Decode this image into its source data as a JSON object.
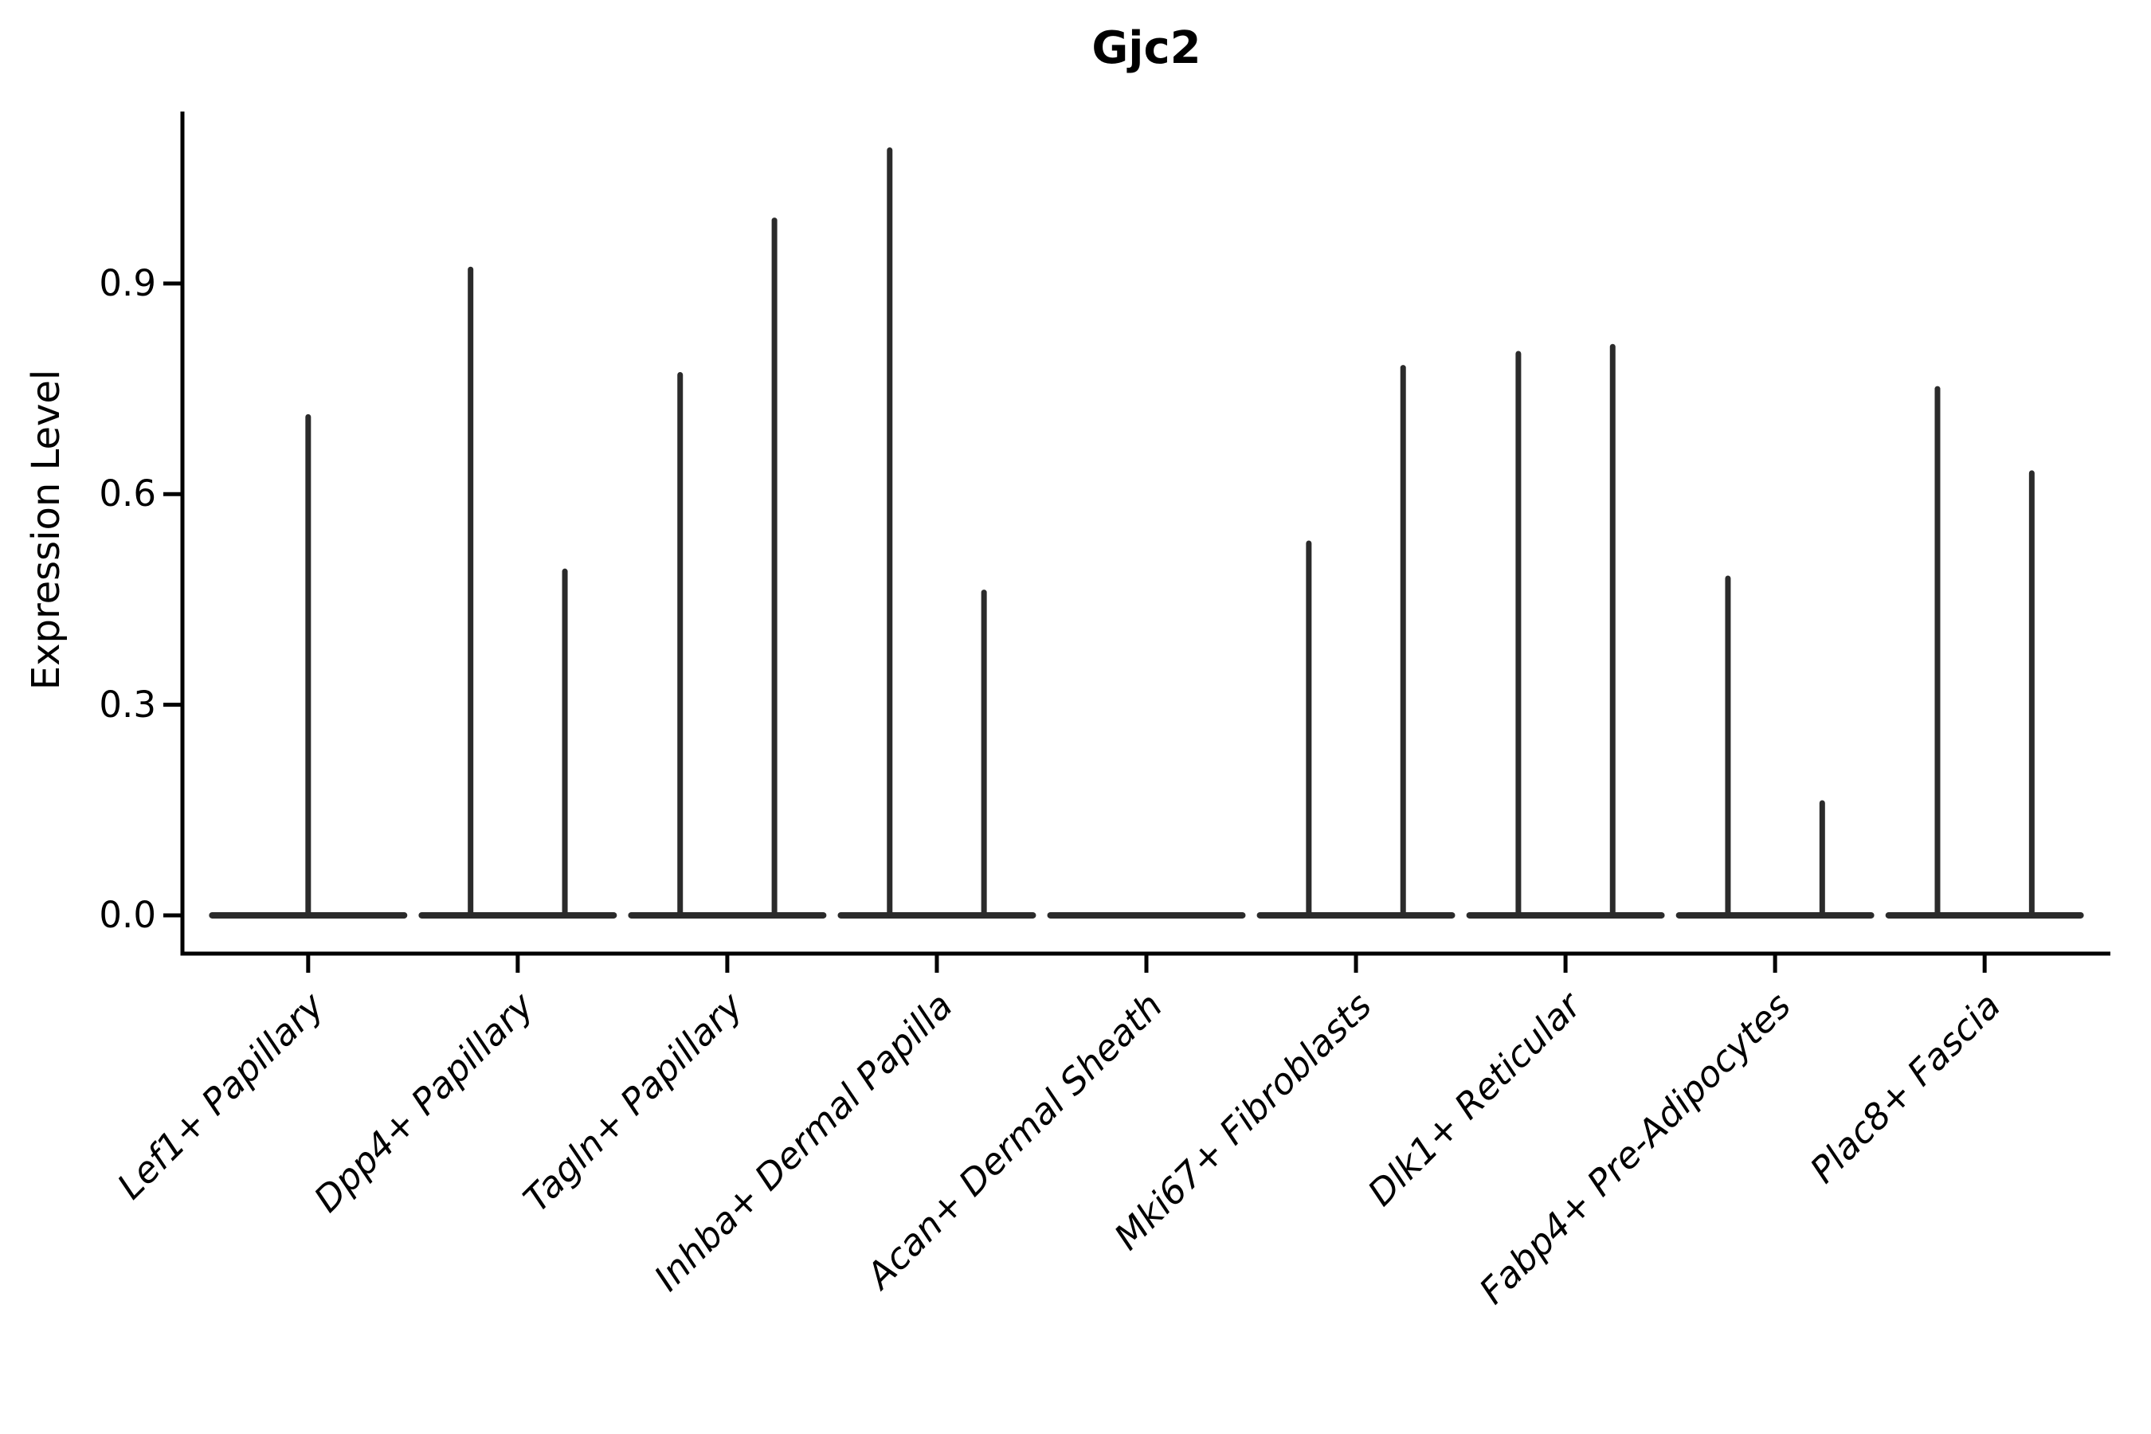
{
  "chart_data": {
    "type": "violin",
    "title": "Gjc2",
    "xlabel": "",
    "ylabel": "Expression Level",
    "yticks": [
      0.0,
      0.3,
      0.6,
      0.9
    ],
    "ylim": [
      -0.0545,
      1.145
    ],
    "grid": false,
    "legend": "none",
    "style_note": "Seurat-style stacked violin: each category shows near-zero-width violins (most cells at 0) rendered as a flat baseline at 0 with thin vertical density spikes; two dodged violin groups per category, single full-width violin when only one group present",
    "line_color": "#2b2b2b",
    "spine_color": "#000000",
    "background_color": "#ffffff",
    "categories": [
      {
        "label": "Lef1+ Papillary",
        "violins": [
          {
            "pos": "center",
            "max": 0.71
          }
        ]
      },
      {
        "label": "Dpp4+ Papillary",
        "violins": [
          {
            "pos": "left",
            "max": 0.92
          },
          {
            "pos": "right",
            "max": 0.49
          }
        ]
      },
      {
        "label": "Tagln+ Papillary",
        "violins": [
          {
            "pos": "left",
            "max": 0.77
          },
          {
            "pos": "right",
            "max": 0.99
          }
        ]
      },
      {
        "label": "Inhba+ Dermal Papilla",
        "violins": [
          {
            "pos": "left",
            "max": 1.09
          },
          {
            "pos": "right",
            "max": 0.46
          }
        ]
      },
      {
        "label": "Acan+ Dermal Sheath",
        "violins": [
          {
            "pos": "center",
            "max": 0.0
          }
        ]
      },
      {
        "label": "Mki67+ Fibroblasts",
        "violins": [
          {
            "pos": "left",
            "max": 0.53
          },
          {
            "pos": "right",
            "max": 0.78
          }
        ]
      },
      {
        "label": "Dlk1+ Reticular",
        "violins": [
          {
            "pos": "left",
            "max": 0.8
          },
          {
            "pos": "right",
            "max": 0.81
          }
        ]
      },
      {
        "label": "Fabp4+ Pre-Adipocytes",
        "violins": [
          {
            "pos": "left",
            "max": 0.48
          },
          {
            "pos": "right",
            "max": 0.16
          }
        ]
      },
      {
        "label": "Plac8+ Fascia",
        "violins": [
          {
            "pos": "left",
            "max": 0.75
          },
          {
            "pos": "right",
            "max": 0.63
          }
        ]
      }
    ]
  }
}
